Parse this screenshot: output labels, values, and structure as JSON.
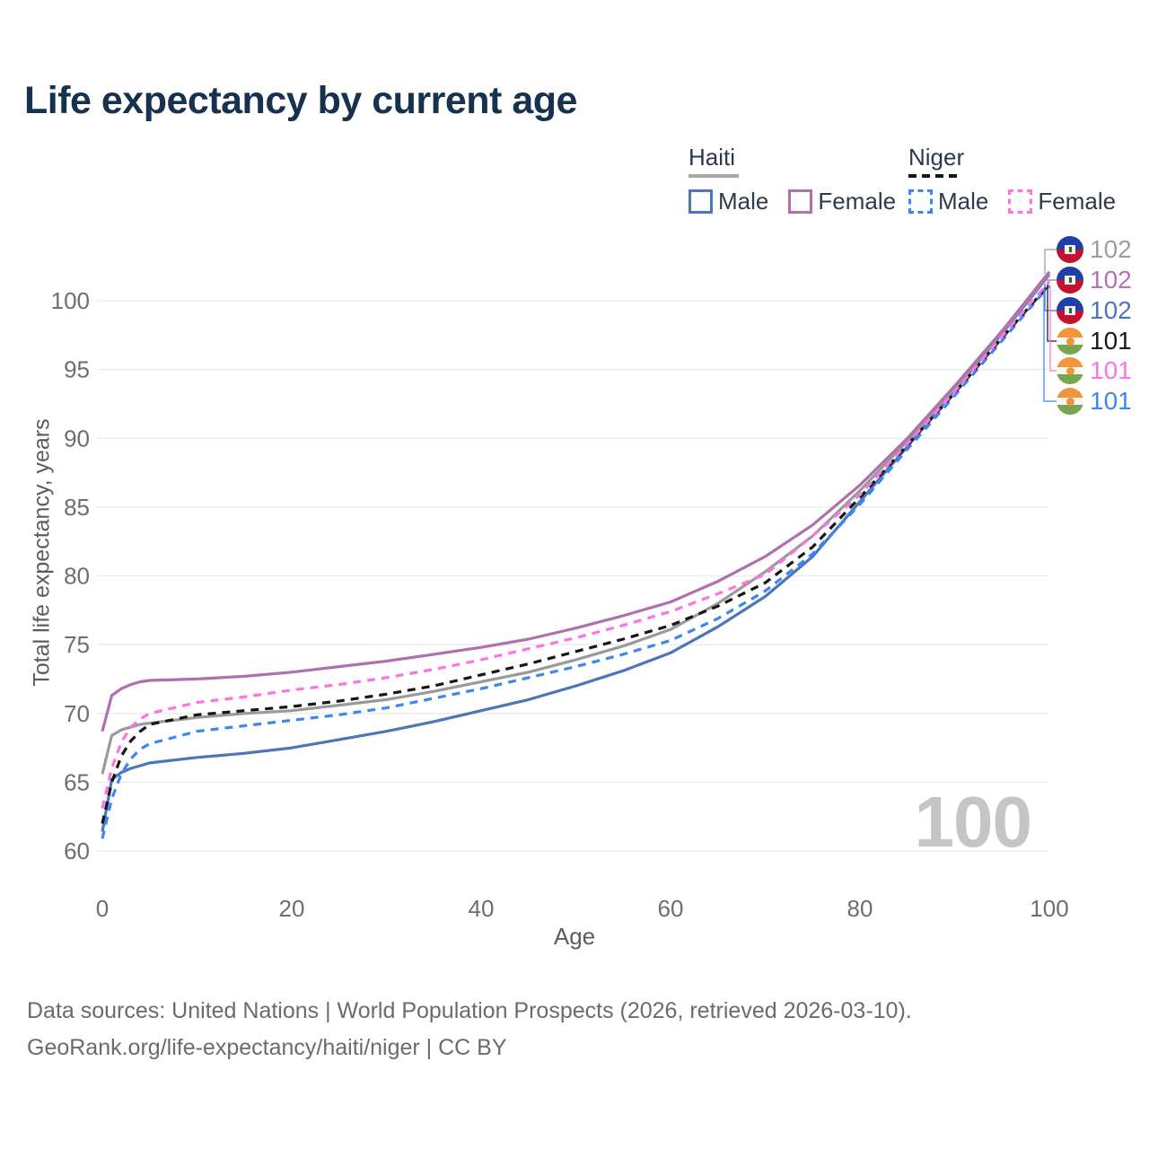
{
  "title": "Life expectancy by current age",
  "legend": {
    "groups": [
      {
        "name": "Haiti",
        "underline_color": "#a8a8a8",
        "underline_style": "solid",
        "items": [
          {
            "label": "Male",
            "color": "#4b76b8",
            "dashed": false
          },
          {
            "label": "Female",
            "color": "#b06fae",
            "dashed": false
          }
        ]
      },
      {
        "name": "Niger",
        "underline_color": "#161616",
        "underline_style": "dashed",
        "items": [
          {
            "label": "Male",
            "color": "#3e86f2",
            "dashed": true
          },
          {
            "label": "Female",
            "color": "#fb74e2",
            "dashed": true
          }
        ]
      }
    ]
  },
  "chart_data": {
    "type": "line",
    "title": "Life expectancy by current age",
    "xlabel": "Age",
    "ylabel": "Total life expectancy, years",
    "xlim": [
      0,
      100
    ],
    "ylim": [
      60,
      100
    ],
    "x_ticks": [
      0,
      20,
      40,
      60,
      80,
      100
    ],
    "y_ticks": [
      60,
      65,
      70,
      75,
      80,
      85,
      90,
      95,
      100
    ],
    "grid": "horizontal",
    "legend_position": "top-right",
    "x": [
      0,
      1,
      2,
      3,
      4,
      5,
      10,
      15,
      20,
      25,
      30,
      35,
      40,
      45,
      50,
      55,
      60,
      65,
      70,
      75,
      80,
      85,
      90,
      95,
      100
    ],
    "series": [
      {
        "name": "Haiti Male",
        "color": "#4b76b8",
        "dash": null,
        "values": [
          61.4,
          65.2,
          65.7,
          66.0,
          66.2,
          66.4,
          66.8,
          67.1,
          67.5,
          68.1,
          68.7,
          69.4,
          70.2,
          71.0,
          72.0,
          73.1,
          74.4,
          76.3,
          78.5,
          81.4,
          85.4,
          89.4,
          93.5,
          97.6,
          101.9
        ]
      },
      {
        "name": "Niger Male",
        "color": "#3e86f2",
        "dash": "9 7",
        "values": [
          60.9,
          63.8,
          65.6,
          66.7,
          67.4,
          67.8,
          68.7,
          69.1,
          69.5,
          69.9,
          70.4,
          71.1,
          71.8,
          72.6,
          73.4,
          74.3,
          75.3,
          76.9,
          78.9,
          81.6,
          85.2,
          89.2,
          93.1,
          97.1,
          101.1
        ]
      },
      {
        "name": "Haiti Both sexes",
        "color": "#9a9a9a",
        "dash": null,
        "values": [
          65.6,
          68.4,
          68.8,
          69.0,
          69.2,
          69.3,
          69.7,
          70.0,
          70.2,
          70.6,
          71.0,
          71.6,
          72.3,
          73.0,
          73.9,
          74.9,
          76.1,
          78.0,
          80.3,
          82.9,
          86.2,
          89.8,
          93.6,
          97.7,
          102.0
        ]
      },
      {
        "name": "Niger Both sexes",
        "color": "#161616",
        "dash": "9 7",
        "values": [
          62.0,
          65.0,
          66.9,
          68.0,
          68.7,
          69.2,
          69.9,
          70.2,
          70.5,
          70.9,
          71.4,
          72.0,
          72.8,
          73.6,
          74.5,
          75.4,
          76.4,
          77.8,
          79.5,
          82.1,
          85.7,
          89.5,
          93.3,
          97.3,
          101.2
        ]
      },
      {
        "name": "Niger Female",
        "color": "#fb74e2",
        "dash": "9 7",
        "values": [
          63.1,
          66.0,
          67.9,
          69.0,
          69.6,
          70.0,
          70.8,
          71.2,
          71.7,
          72.1,
          72.6,
          73.2,
          73.9,
          74.7,
          75.5,
          76.4,
          77.4,
          78.7,
          80.1,
          82.9,
          85.9,
          89.6,
          93.4,
          97.4,
          101.4
        ]
      },
      {
        "name": "Haiti Female",
        "color": "#b06fae",
        "dash": null,
        "values": [
          68.7,
          71.3,
          71.8,
          72.1,
          72.3,
          72.4,
          72.5,
          72.7,
          73.0,
          73.4,
          73.8,
          74.3,
          74.8,
          75.4,
          76.2,
          77.1,
          78.1,
          79.6,
          81.4,
          83.7,
          86.6,
          90.0,
          93.8,
          97.8,
          102.1
        ]
      }
    ],
    "end_labels": [
      {
        "country": "Haiti",
        "value": "102",
        "color": "#9e9e9e"
      },
      {
        "country": "Haiti",
        "value": "102",
        "color": "#b671b3"
      },
      {
        "country": "Haiti",
        "value": "102",
        "color": "#4f74bc"
      },
      {
        "country": "Niger",
        "value": "101",
        "color": "#1a1a1a"
      },
      {
        "country": "Niger",
        "value": "101",
        "color": "#fb74e2"
      },
      {
        "country": "Niger",
        "value": "101",
        "color": "#3e86f2"
      }
    ],
    "watermark": "100"
  },
  "footer": {
    "line1": "Data sources: United Nations | World Population Prospects (2026, retrieved 2026-03-10).",
    "line2": "GeoRank.org/life-expectancy/haiti/niger | CC BY"
  }
}
